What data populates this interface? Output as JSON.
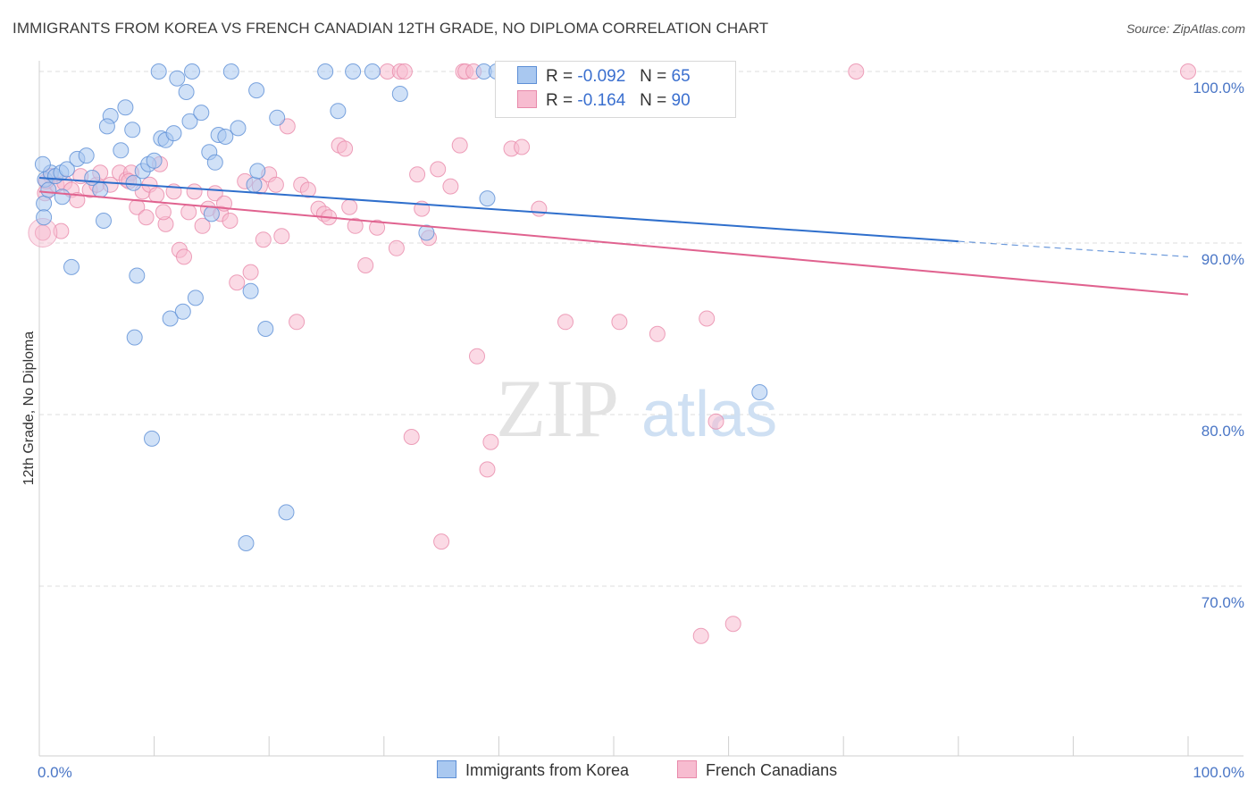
{
  "title": "IMMIGRANTS FROM KOREA VS FRENCH CANADIAN 12TH GRADE, NO DIPLOMA CORRELATION CHART",
  "source": "Source: ZipAtlas.com",
  "watermark": {
    "zip": "ZIP",
    "atlas": "atlas"
  },
  "legend": {
    "korea": {
      "r_label": "R =",
      "r_value": "-0.092",
      "n_label": "N =",
      "n_value": "65"
    },
    "french": {
      "r_label": "R =",
      "r_value": "-0.164",
      "n_label": "N =",
      "n_value": "90"
    }
  },
  "bottom_legend": {
    "korea": "Immigrants from Korea",
    "french": "French Canadians"
  },
  "colors": {
    "korea_fill": "#a9c8f0",
    "korea_stroke": "#5d8fd6",
    "korea_line": "#2f6fcc",
    "french_fill": "#f7bcd0",
    "french_stroke": "#e889aa",
    "french_line": "#e0628f",
    "tick_label": "#4a76c6"
  },
  "chart_data": {
    "type": "scatter",
    "title": "IMMIGRANTS FROM KOREA VS FRENCH CANADIAN 12TH GRADE, NO DIPLOMA CORRELATION CHART",
    "xlabel": "",
    "ylabel": "12th Grade, No Diploma",
    "xlim": [
      0,
      100
    ],
    "ylim": [
      60,
      100
    ],
    "y_ticks": [
      {
        "v": 100,
        "label": "100.0%"
      },
      {
        "v": 90,
        "label": "90.0%"
      },
      {
        "v": 80,
        "label": "80.0%"
      },
      {
        "v": 70,
        "label": "70.0%"
      }
    ],
    "x_ticks": [
      {
        "v": 0,
        "label": "0.0%"
      },
      {
        "v": 100,
        "label": "100.0%"
      }
    ],
    "grid": "horizontal dashed",
    "legend_position": "top-center",
    "series": [
      {
        "name": "Immigrants from Korea",
        "trend": {
          "x0": 0,
          "y0": 93.8,
          "x1": 80,
          "y1": 90.1,
          "dashed_to_x": 100,
          "dashed_to_y": 89.2
        },
        "points": [
          [
            0.4,
            92.3
          ],
          [
            0.5,
            93.7
          ],
          [
            0.8,
            93.1
          ],
          [
            1.0,
            94.1
          ],
          [
            1.4,
            93.9
          ],
          [
            1.9,
            94.1
          ],
          [
            2.0,
            92.7
          ],
          [
            2.4,
            94.3
          ],
          [
            3.3,
            94.9
          ],
          [
            4.1,
            95.1
          ],
          [
            4.6,
            93.8
          ],
          [
            2.8,
            88.6
          ],
          [
            5.3,
            93.1
          ],
          [
            5.6,
            91.3
          ],
          [
            6.2,
            97.4
          ],
          [
            5.9,
            96.8
          ],
          [
            7.1,
            95.4
          ],
          [
            7.5,
            97.9
          ],
          [
            8.2,
            93.5
          ],
          [
            8.1,
            96.6
          ],
          [
            8.5,
            88.1
          ],
          [
            8.3,
            84.5
          ],
          [
            9.0,
            94.2
          ],
          [
            9.5,
            94.6
          ],
          [
            9.8,
            78.6
          ],
          [
            10.0,
            94.8
          ],
          [
            10.6,
            96.1
          ],
          [
            11.0,
            96.0
          ],
          [
            11.4,
            85.6
          ],
          [
            10.4,
            100
          ],
          [
            11.7,
            96.4
          ],
          [
            12.0,
            99.6
          ],
          [
            12.5,
            86.0
          ],
          [
            12.8,
            98.8
          ],
          [
            13.1,
            97.1
          ],
          [
            13.3,
            100
          ],
          [
            13.6,
            86.8
          ],
          [
            14.1,
            97.6
          ],
          [
            14.8,
            95.3
          ],
          [
            15.3,
            94.7
          ],
          [
            15.0,
            91.7
          ],
          [
            15.6,
            96.3
          ],
          [
            16.2,
            96.2
          ],
          [
            16.7,
            100
          ],
          [
            17.3,
            96.7
          ],
          [
            18.0,
            72.5
          ],
          [
            18.4,
            87.2
          ],
          [
            18.7,
            93.4
          ],
          [
            18.9,
            98.9
          ],
          [
            19.0,
            94.2
          ],
          [
            19.7,
            85.0
          ],
          [
            20.7,
            97.3
          ],
          [
            21.5,
            74.3
          ],
          [
            24.9,
            100
          ],
          [
            26.0,
            97.7
          ],
          [
            27.3,
            100
          ],
          [
            29.0,
            100
          ],
          [
            31.4,
            98.7
          ],
          [
            33.7,
            90.6
          ],
          [
            38.7,
            100
          ],
          [
            39.0,
            92.6
          ],
          [
            39.8,
            100
          ],
          [
            62.7,
            81.3
          ],
          [
            0.4,
            91.5
          ],
          [
            0.3,
            94.6
          ]
        ]
      },
      {
        "name": "French Canadians",
        "trend": {
          "x0": 0,
          "y0": 93.0,
          "x1": 100,
          "y1": 87.0
        },
        "points": [
          [
            0.3,
            90.6
          ],
          [
            0.5,
            92.9
          ],
          [
            1.0,
            93.9
          ],
          [
            1.5,
            93.4
          ],
          [
            2.2,
            93.5
          ],
          [
            2.8,
            93.1
          ],
          [
            3.6,
            93.9
          ],
          [
            4.4,
            93.1
          ],
          [
            5.0,
            93.4
          ],
          [
            5.3,
            94.1
          ],
          [
            6.2,
            93.4
          ],
          [
            7.0,
            94.1
          ],
          [
            7.6,
            93.7
          ],
          [
            8.0,
            94.1
          ],
          [
            8.5,
            92.1
          ],
          [
            9.0,
            93.0
          ],
          [
            9.3,
            91.5
          ],
          [
            9.6,
            93.4
          ],
          [
            10.2,
            92.8
          ],
          [
            10.5,
            94.6
          ],
          [
            11.0,
            91.1
          ],
          [
            11.7,
            93.0
          ],
          [
            12.2,
            89.6
          ],
          [
            12.6,
            89.2
          ],
          [
            13.0,
            91.8
          ],
          [
            13.5,
            93.0
          ],
          [
            14.2,
            91.0
          ],
          [
            14.7,
            92.0
          ],
          [
            15.3,
            92.9
          ],
          [
            15.8,
            91.7
          ],
          [
            16.1,
            92.3
          ],
          [
            16.6,
            91.3
          ],
          [
            17.2,
            87.7
          ],
          [
            17.9,
            93.6
          ],
          [
            18.4,
            88.3
          ],
          [
            19.2,
            93.3
          ],
          [
            19.5,
            90.2
          ],
          [
            20.0,
            94.0
          ],
          [
            20.6,
            93.4
          ],
          [
            21.1,
            90.4
          ],
          [
            21.6,
            96.8
          ],
          [
            22.4,
            85.4
          ],
          [
            22.8,
            93.4
          ],
          [
            23.4,
            93.1
          ],
          [
            24.3,
            92.0
          ],
          [
            24.8,
            91.7
          ],
          [
            25.2,
            91.5
          ],
          [
            26.1,
            95.7
          ],
          [
            26.6,
            95.5
          ],
          [
            27.0,
            92.1
          ],
          [
            27.5,
            91.0
          ],
          [
            28.4,
            88.7
          ],
          [
            29.4,
            90.9
          ],
          [
            30.3,
            100
          ],
          [
            31.4,
            100
          ],
          [
            31.8,
            100
          ],
          [
            31.1,
            89.7
          ],
          [
            32.4,
            78.7
          ],
          [
            32.9,
            94.0
          ],
          [
            33.3,
            92.0
          ],
          [
            33.9,
            90.3
          ],
          [
            34.7,
            94.3
          ],
          [
            35.0,
            72.6
          ],
          [
            35.8,
            93.3
          ],
          [
            36.6,
            95.7
          ],
          [
            36.9,
            100
          ],
          [
            37.1,
            100
          ],
          [
            37.8,
            100
          ],
          [
            38.1,
            83.4
          ],
          [
            39.0,
            76.8
          ],
          [
            39.3,
            78.4
          ],
          [
            41.1,
            95.5
          ],
          [
            42.0,
            95.6
          ],
          [
            43.5,
            92.0
          ],
          [
            45.8,
            85.4
          ],
          [
            47.1,
            100
          ],
          [
            48.2,
            100
          ],
          [
            50.5,
            85.4
          ],
          [
            53.8,
            84.7
          ],
          [
            57.6,
            67.1
          ],
          [
            58.1,
            85.6
          ],
          [
            58.9,
            79.6
          ],
          [
            60.4,
            67.8
          ],
          [
            71.1,
            100
          ],
          [
            100.0,
            100
          ],
          [
            10.8,
            91.8
          ],
          [
            0.6,
            93.6
          ],
          [
            3.3,
            92.5
          ],
          [
            7.8,
            93.6
          ],
          [
            1.9,
            90.7
          ]
        ]
      }
    ]
  }
}
